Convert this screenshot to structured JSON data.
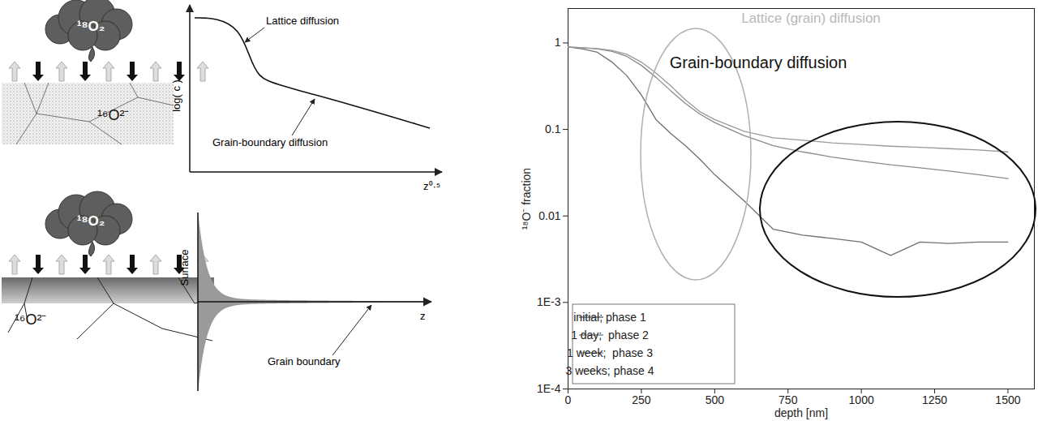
{
  "chart_data": {
    "type": "line",
    "annotations": [
      "Lattice (grain) diffusion",
      "Grain-boundary diffusion"
    ],
    "x_label": "depth [nm]",
    "y_label": "¹⁸O⁻ fraction",
    "log": "y",
    "grid": false,
    "legend": "bottom-left",
    "x": [
      0,
      50,
      100,
      150,
      200,
      250,
      300,
      350,
      400,
      450,
      500,
      600,
      700,
      800,
      900,
      1000,
      1100,
      1200,
      1300,
      1400,
      1500
    ],
    "series": [
      {
        "name": "initial; phase 1",
        "color": "#6f6f6f",
        "values": [
          0.9,
          0.85,
          0.78,
          0.6,
          0.42,
          0.25,
          0.13,
          0.09,
          0.065,
          0.045,
          0.03,
          0.015,
          0.007,
          0.006,
          0.0055,
          0.005,
          0.0035,
          0.005,
          0.0048,
          0.005,
          0.005
        ]
      },
      {
        "name": "1 day;  phase 2",
        "color": "#8a8a8a",
        "values": [
          0.9,
          0.88,
          0.85,
          0.8,
          0.7,
          0.55,
          0.4,
          0.28,
          0.2,
          0.15,
          0.12,
          0.085,
          0.065,
          0.055,
          0.048,
          0.043,
          0.039,
          0.036,
          0.033,
          0.03,
          0.027
        ]
      },
      {
        "name": "1 week;  phase 3",
        "color": "#9a9a9a",
        "values": [
          0.9,
          0.88,
          0.86,
          0.82,
          0.74,
          0.6,
          0.45,
          0.32,
          0.22,
          0.16,
          0.13,
          0.095,
          0.08,
          0.075,
          0.07,
          0.067,
          0.064,
          0.062,
          0.06,
          0.058,
          0.055
        ]
      },
      {
        "name": "3 weeks; phase 4",
        "color": "#d0d0d0",
        "values": [
          null,
          null,
          null,
          null,
          null,
          null,
          null,
          null,
          null,
          null,
          null,
          null,
          null,
          null,
          null,
          null,
          null,
          null,
          null,
          null,
          null
        ]
      }
    ],
    "xlim": [
      0,
      1590
    ],
    "xticks": [
      0,
      250,
      500,
      750,
      1000,
      1250,
      1500
    ],
    "ylim": [
      0.0001,
      2.5
    ],
    "yticks": [
      1,
      0.1,
      0.01,
      {
        "value": 0.001,
        "label": "1E-3"
      },
      {
        "value": 0.0001,
        "label": "1E-4"
      }
    ]
  },
  "diagram": {
    "top": {
      "gas": "¹⁸O₂",
      "solid": "¹⁶O²⁻"
    },
    "sketch": {
      "y_label": "log( c )",
      "x_label": "z⁰·⁵",
      "annotations": [
        "Lattice diffusion",
        "Grain-boundary diffusion"
      ]
    },
    "bottom": {
      "gas": "¹⁸O₂",
      "solid": "¹⁶O²⁻"
    },
    "profile": {
      "y_label": "Surface",
      "x_label": "z",
      "annotation": "Grain boundary"
    }
  }
}
